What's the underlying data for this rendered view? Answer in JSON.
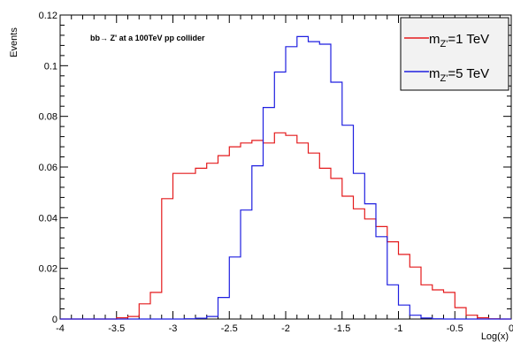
{
  "chart_data": {
    "type": "histogram",
    "annotation": "bb→ Z' at a 100TeV pp collider",
    "ylabel": "Events",
    "xlabel": "Log(x)",
    "xlim": [
      -4,
      0
    ],
    "ylim": [
      0,
      0.12
    ],
    "x_ticks": [
      "-4",
      "-3.5",
      "-3",
      "-2.5",
      "-2",
      "-1.5",
      "-1",
      "-0.5",
      "0"
    ],
    "y_ticks": [
      "0",
      "0.02",
      "0.04",
      "0.06",
      "0.08",
      "0.1",
      "0.12"
    ],
    "bin_edges": [
      -4.0,
      -3.9,
      -3.8,
      -3.7,
      -3.6,
      -3.5,
      -3.4,
      -3.3,
      -3.2,
      -3.1,
      -3.0,
      -2.9,
      -2.8,
      -2.7,
      -2.6,
      -2.5,
      -2.4,
      -2.3,
      -2.2,
      -2.1,
      -2.0,
      -1.9,
      -1.8,
      -1.7,
      -1.6,
      -1.5,
      -1.4,
      -1.3,
      -1.2,
      -1.1,
      -1.0,
      -0.9,
      -0.8,
      -0.7,
      -0.6,
      -0.5,
      -0.4,
      -0.3,
      -0.2,
      -0.1,
      0.0
    ],
    "series": [
      {
        "name_main": "m",
        "name_sub": "Z'",
        "name_rest": "=1 TeV",
        "color": "#e41a1c",
        "values": [
          0,
          0,
          0,
          0,
          0,
          0.0005,
          0.001,
          0.006,
          0.0105,
          0.0475,
          0.0575,
          0.0575,
          0.0595,
          0.0615,
          0.0645,
          0.068,
          0.0695,
          0.0705,
          0.0695,
          0.0735,
          0.0725,
          0.0695,
          0.0655,
          0.0595,
          0.0555,
          0.0485,
          0.0435,
          0.0395,
          0.0365,
          0.0305,
          0.0255,
          0.0205,
          0.0135,
          0.0115,
          0.0105,
          0.0045,
          0.0015,
          0.0005,
          0.0001,
          0
        ]
      },
      {
        "name_main": "m",
        "name_sub": "Z'",
        "name_rest": "=5 TeV",
        "color": "#1f1fe0",
        "values": [
          0,
          0,
          0,
          0,
          0,
          0,
          0,
          0,
          0,
          0,
          0,
          0.0001,
          0.0003,
          0.001,
          0.0085,
          0.0245,
          0.043,
          0.0605,
          0.0835,
          0.0975,
          0.1075,
          0.1115,
          0.1095,
          0.1085,
          0.0935,
          0.0765,
          0.0575,
          0.0455,
          0.0325,
          0.0135,
          0.0055,
          0.0015,
          0.0004,
          0.0001,
          0,
          0,
          0,
          0,
          0,
          0
        ]
      }
    ],
    "legend_position": "top-right",
    "grid": false
  }
}
